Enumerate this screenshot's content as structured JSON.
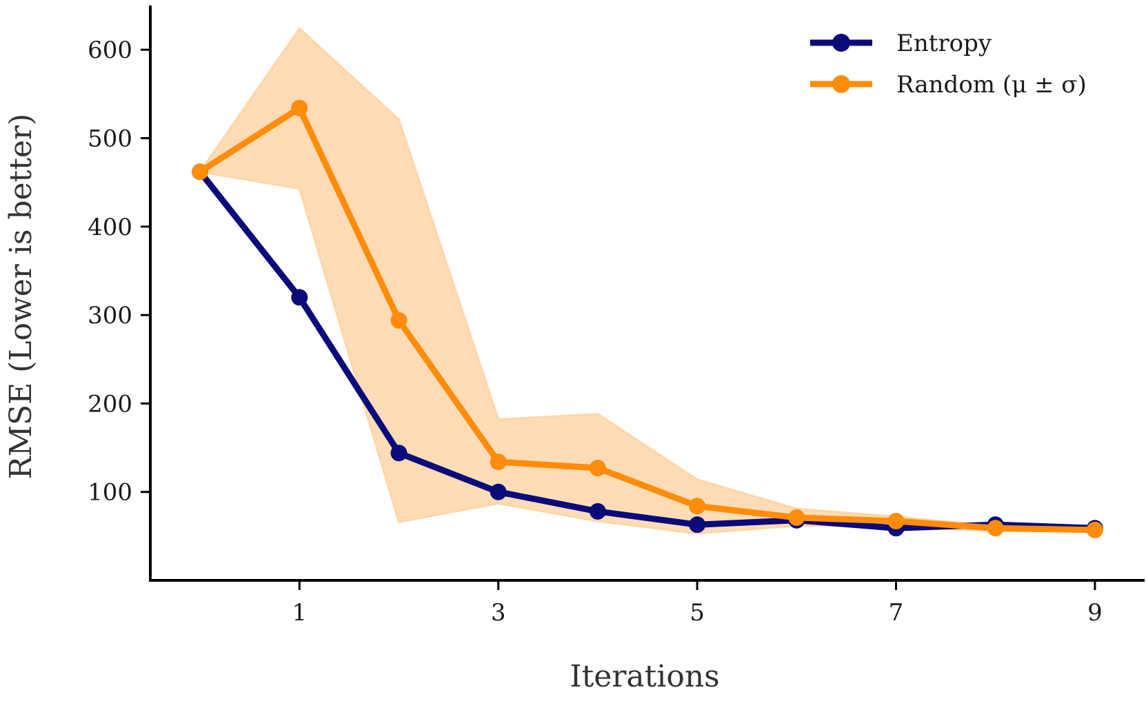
{
  "chart_data": {
    "type": "line",
    "title": "",
    "xlabel": "Iterations",
    "ylabel": "RMSE (Lower is better)",
    "xlim": [
      -0.5,
      9.5
    ],
    "ylim": [
      0,
      650
    ],
    "xticks": [
      1,
      3,
      5,
      7,
      9
    ],
    "yticks": [
      100,
      200,
      300,
      400,
      500,
      600
    ],
    "grid": false,
    "legend_position": "top-right",
    "x": [
      0,
      1,
      2,
      3,
      4,
      5,
      6,
      7,
      8,
      9
    ],
    "series": [
      {
        "name": "Entropy",
        "color": "#0a0a7a",
        "values": [
          462,
          320,
          144,
          100,
          78,
          63,
          68,
          59,
          63,
          59
        ]
      },
      {
        "name": "Random (μ ± σ)",
        "color": "#ff8c0a",
        "band_color": "#ffd6a8",
        "values": [
          462,
          534,
          294,
          134,
          127,
          84,
          71,
          67,
          59,
          57
        ],
        "upper": [
          462,
          624,
          521,
          182,
          188,
          114,
          81,
          72,
          61,
          58
        ],
        "lower": [
          462,
          443,
          66,
          87,
          67,
          53,
          62,
          61,
          56,
          55
        ]
      }
    ]
  }
}
